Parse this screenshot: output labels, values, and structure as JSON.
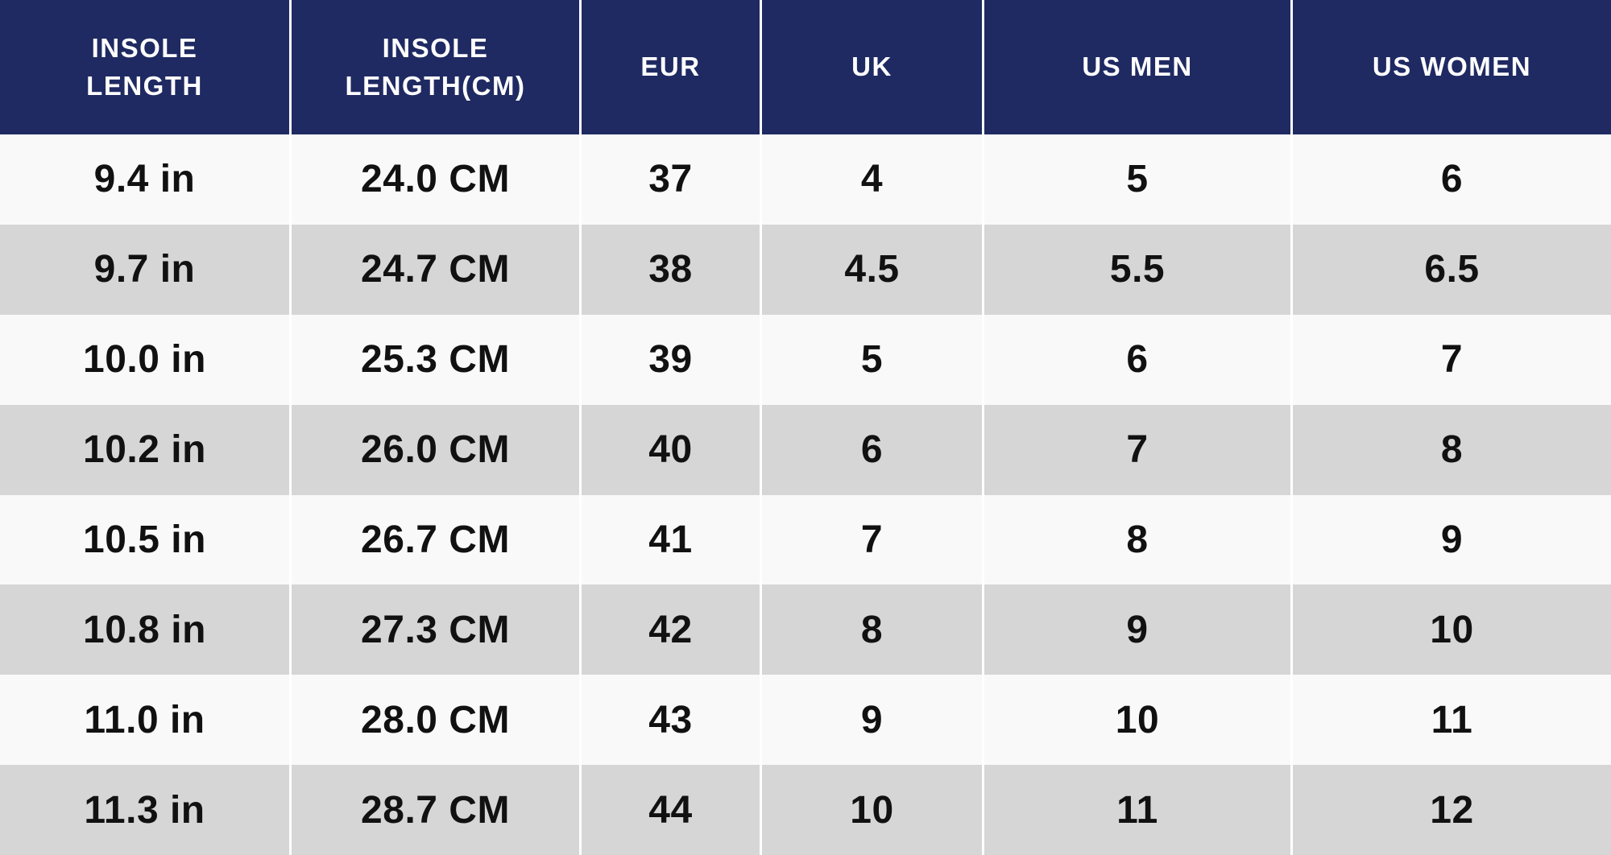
{
  "chart_data": {
    "type": "table",
    "columns": [
      "INSOLE LENGTH",
      "INSOLE LENGTH(CM)",
      "EUR",
      "UK",
      "US MEN",
      "US WOMEN"
    ],
    "rows": [
      [
        "9.4 in",
        "24.0 CM",
        "37",
        "4",
        "5",
        "6"
      ],
      [
        "9.7 in",
        "24.7 CM",
        "38",
        "4.5",
        "5.5",
        "6.5"
      ],
      [
        "10.0 in",
        "25.3 CM",
        "39",
        "5",
        "6",
        "7"
      ],
      [
        "10.2 in",
        "26.0 CM",
        "40",
        "6",
        "7",
        "8"
      ],
      [
        "10.5 in",
        "26.7 CM",
        "41",
        "7",
        "8",
        "9"
      ],
      [
        "10.8 in",
        "27.3 CM",
        "42",
        "8",
        "9",
        "10"
      ],
      [
        "11.0 in",
        "28.0 CM",
        "43",
        "9",
        "10",
        "11"
      ],
      [
        "11.3 in",
        "28.7 CM",
        "44",
        "10",
        "11",
        "12"
      ]
    ],
    "layout_hints": {
      "header_style": "navy band, white bold uppercase text",
      "row_striping": "odd rows off-white, even rows light gray",
      "gridlines": "vertical white dividers only"
    }
  },
  "header_display": {
    "labels": [
      "INSOLE\nLENGTH",
      "INSOLE\nLENGTH(CM)",
      "EUR",
      "UK",
      "US MEN",
      "US WOMEN"
    ]
  },
  "colors": {
    "header_bg": "#1f2a62",
    "header_text": "#ffffff",
    "row_light": "#f9f9f9",
    "row_dark": "#d6d6d6",
    "cell_text": "#111111",
    "divider": "#ffffff"
  }
}
